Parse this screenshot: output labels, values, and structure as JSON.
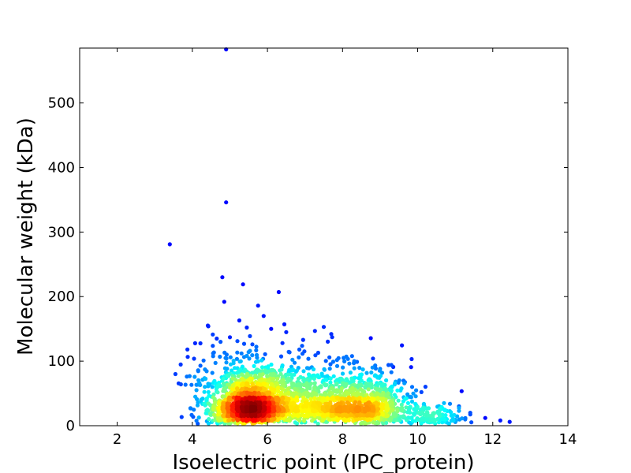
{
  "chart_data": {
    "type": "scatter",
    "title": "",
    "xlabel": "Isoelectric point (IPC_protein)",
    "ylabel": "Molecular weight (kDa)",
    "xlim": [
      1,
      14
    ],
    "ylim": [
      0,
      585
    ],
    "xticks": [
      2,
      4,
      6,
      8,
      10,
      12,
      14
    ],
    "yticks": [
      0,
      100,
      200,
      300,
      400,
      500
    ],
    "grid": false,
    "legend": "none",
    "colormap": "jet (point density)",
    "colors": {
      "low_density": "#00008f",
      "mid_density": "#00ffff",
      "high_density": "#ffff00",
      "peak_density": "#c00000"
    },
    "outliers": [
      {
        "x": 4.9,
        "y": 583
      },
      {
        "x": 4.9,
        "y": 346
      },
      {
        "x": 3.4,
        "y": 281
      },
      {
        "x": 4.8,
        "y": 230
      },
      {
        "x": 5.35,
        "y": 219
      },
      {
        "x": 6.3,
        "y": 207
      },
      {
        "x": 4.85,
        "y": 192
      },
      {
        "x": 5.75,
        "y": 186
      },
      {
        "x": 5.9,
        "y": 170
      },
      {
        "x": 5.25,
        "y": 163
      },
      {
        "x": 6.45,
        "y": 157
      },
      {
        "x": 7.5,
        "y": 153
      },
      {
        "x": 5.45,
        "y": 152
      },
      {
        "x": 6.1,
        "y": 150
      },
      {
        "x": 6.5,
        "y": 145
      },
      {
        "x": 7.7,
        "y": 142
      },
      {
        "x": 5.0,
        "y": 137
      },
      {
        "x": 4.65,
        "y": 135
      },
      {
        "x": 6.95,
        "y": 133
      },
      {
        "x": 5.2,
        "y": 131
      },
      {
        "x": 4.75,
        "y": 130
      },
      {
        "x": 6.4,
        "y": 128
      },
      {
        "x": 5.6,
        "y": 126
      },
      {
        "x": 6.85,
        "y": 118
      },
      {
        "x": 7.35,
        "y": 113
      },
      {
        "x": 8.1,
        "y": 107
      },
      {
        "x": 4.3,
        "y": 101
      },
      {
        "x": 7.75,
        "y": 99
      },
      {
        "x": 8.3,
        "y": 97
      },
      {
        "x": 9.3,
        "y": 94
      },
      {
        "x": 9.35,
        "y": 91
      },
      {
        "x": 9.0,
        "y": 88
      },
      {
        "x": 3.55,
        "y": 80
      },
      {
        "x": 10.1,
        "y": 52
      },
      {
        "x": 10.7,
        "y": 35
      },
      {
        "x": 11.1,
        "y": 30
      },
      {
        "x": 11.4,
        "y": 20
      },
      {
        "x": 11.8,
        "y": 12
      },
      {
        "x": 12.2,
        "y": 8
      },
      {
        "x": 12.45,
        "y": 6
      }
    ],
    "clusters": [
      {
        "x_center": 5.55,
        "x_spread": 0.55,
        "y_center": 30,
        "y_spread": 22,
        "count": 1500
      },
      {
        "x_center": 7.2,
        "x_spread": 0.6,
        "y_center": 30,
        "y_spread": 20,
        "count": 550
      },
      {
        "x_center": 8.6,
        "x_spread": 0.6,
        "y_center": 28,
        "y_spread": 20,
        "count": 800
      },
      {
        "x_center": 10.4,
        "x_spread": 0.45,
        "y_center": 12,
        "y_spread": 8,
        "count": 120
      }
    ]
  }
}
